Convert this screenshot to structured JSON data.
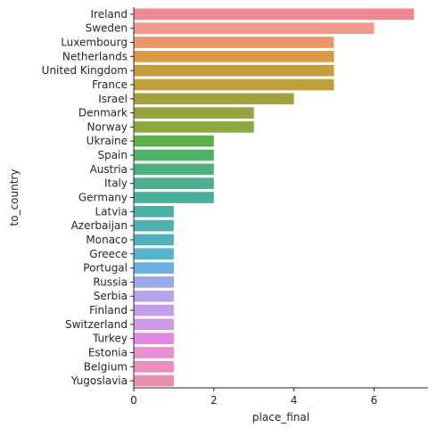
{
  "chart_data": {
    "type": "bar",
    "orientation": "horizontal",
    "xlabel": "place_final",
    "ylabel": "to_country",
    "xlim": [
      0,
      7.35
    ],
    "xticks": [
      0,
      2,
      4,
      6
    ],
    "grid": false,
    "categories": [
      "Ireland",
      "Sweden",
      "Luxembourg",
      "Netherlands",
      "United Kingdom",
      "France",
      "Israel",
      "Denmark",
      "Norway",
      "Ukraine",
      "Spain",
      "Austria",
      "Italy",
      "Germany",
      "Latvia",
      "Azerbaijan",
      "Monaco",
      "Greece",
      "Portugal",
      "Russia",
      "Serbia",
      "Finland",
      "Switzerland",
      "Turkey",
      "Estonia",
      "Belgium",
      "Yugoslavia"
    ],
    "values": [
      7,
      6,
      5,
      5,
      5,
      5,
      4,
      3,
      3,
      2,
      2,
      2,
      2,
      2,
      1,
      1,
      1,
      1,
      1,
      1,
      1,
      1,
      1,
      1,
      1,
      1,
      1
    ],
    "colors": [
      "#ee8a96",
      "#ef9a8a",
      "#e9976b",
      "#d99a48",
      "#c69c3c",
      "#c09e3c",
      "#a4a23c",
      "#96a540",
      "#8aa93e",
      "#5bb04a",
      "#4fb163",
      "#4eb07f",
      "#4daf8f",
      "#4baf9b",
      "#4db0a7",
      "#4fb1b2",
      "#51b1bd",
      "#55b3cd",
      "#6ab0e1",
      "#98a8e8",
      "#b2a3ec",
      "#c39de9",
      "#d097e6",
      "#e489e0",
      "#ea8ecf",
      "#ec8cc1",
      "#e98fae"
    ]
  }
}
